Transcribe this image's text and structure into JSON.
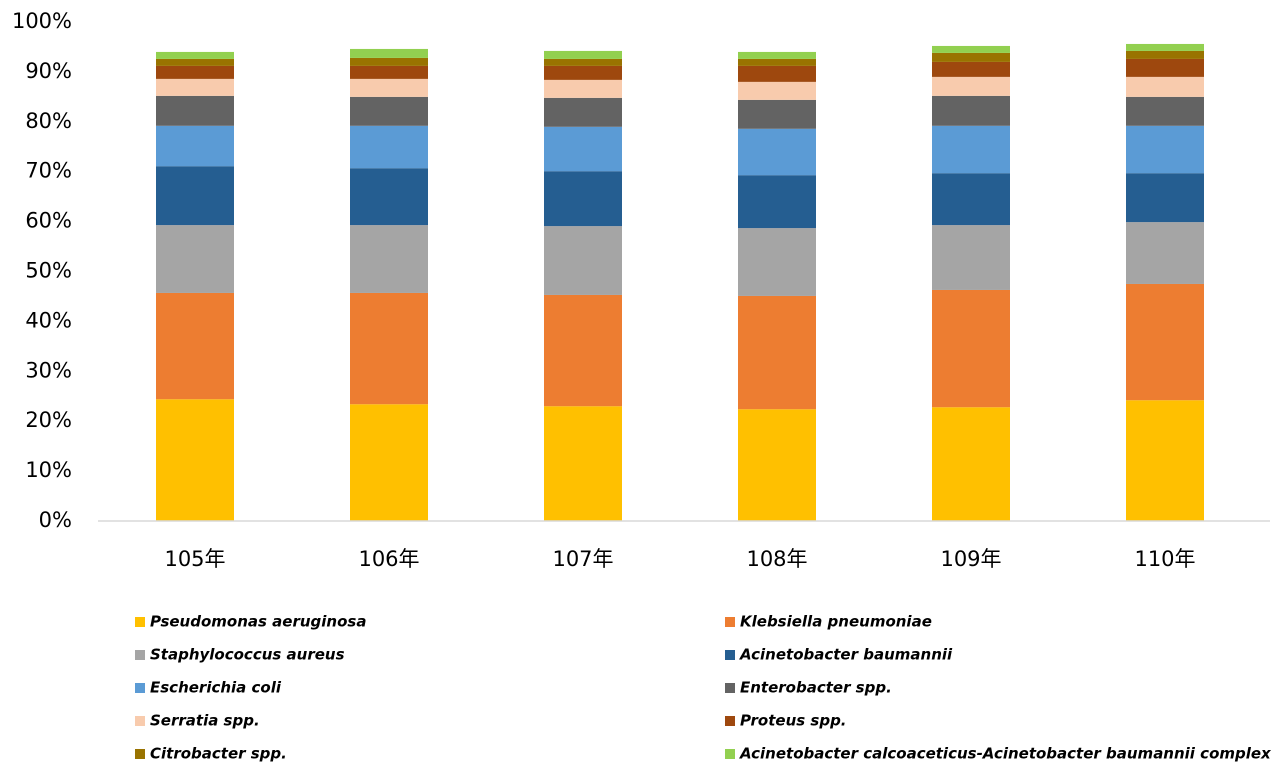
{
  "chart_data": {
    "type": "stacked_bar",
    "categories": [
      "105年",
      "106年",
      "107年",
      "108年",
      "109年",
      "110年"
    ],
    "series": [
      {
        "name": "Pseudomonas aeruginosa",
        "color": "#ffc000",
        "values": [
          24.4,
          23.4,
          23.0,
          22.4,
          22.8,
          24.2
        ]
      },
      {
        "name": "Klebsiella pneumoniae",
        "color": "#ed7d31",
        "values": [
          21.3,
          22.3,
          22.3,
          22.7,
          23.5,
          23.3
        ]
      },
      {
        "name": "Staphylococcus aureus",
        "color": "#a5a5a5",
        "values": [
          13.6,
          13.6,
          13.8,
          13.6,
          13.0,
          12.4
        ]
      },
      {
        "name": "Acinetobacter baumannii",
        "color": "#255e91",
        "values": [
          11.8,
          11.4,
          11.0,
          10.6,
          10.4,
          9.8
        ]
      },
      {
        "name": "Escherichia coli",
        "color": "#5b9bd5",
        "values": [
          8.1,
          8.5,
          8.9,
          9.3,
          9.5,
          9.5
        ]
      },
      {
        "name": "Enterobacter spp.",
        "color": "#636363",
        "values": [
          6.0,
          5.8,
          5.8,
          5.8,
          6.0,
          5.8
        ]
      },
      {
        "name": "Serratia spp.",
        "color": "#f8cbad",
        "values": [
          3.4,
          3.6,
          3.6,
          3.6,
          3.8,
          4.0
        ]
      },
      {
        "name": "Proteus spp.",
        "color": "#9e480e",
        "values": [
          2.6,
          2.6,
          2.8,
          3.2,
          3.0,
          3.6
        ]
      },
      {
        "name": "Citrobacter spp.",
        "color": "#997300",
        "values": [
          1.4,
          1.6,
          1.4,
          1.4,
          1.8,
          1.6
        ]
      },
      {
        "name": "Acinetobacter calcoaceticus-Acinetobacter baumannii complex",
        "color": "#92d050",
        "values": [
          1.4,
          1.8,
          1.6,
          1.4,
          1.4,
          1.4
        ]
      }
    ],
    "ylim": [
      0,
      100
    ],
    "yticks": [
      {
        "value": 0,
        "label": "0%"
      },
      {
        "value": 10,
        "label": "10%"
      },
      {
        "value": 20,
        "label": "20%"
      },
      {
        "value": 30,
        "label": "30%"
      },
      {
        "value": 40,
        "label": "40%"
      },
      {
        "value": 50,
        "label": "50%"
      },
      {
        "value": 60,
        "label": "60%"
      },
      {
        "value": 70,
        "label": "70%"
      },
      {
        "value": 80,
        "label": "80%"
      },
      {
        "value": 90,
        "label": "90%"
      },
      {
        "value": 100,
        "label": "100%"
      }
    ],
    "grid": false
  }
}
